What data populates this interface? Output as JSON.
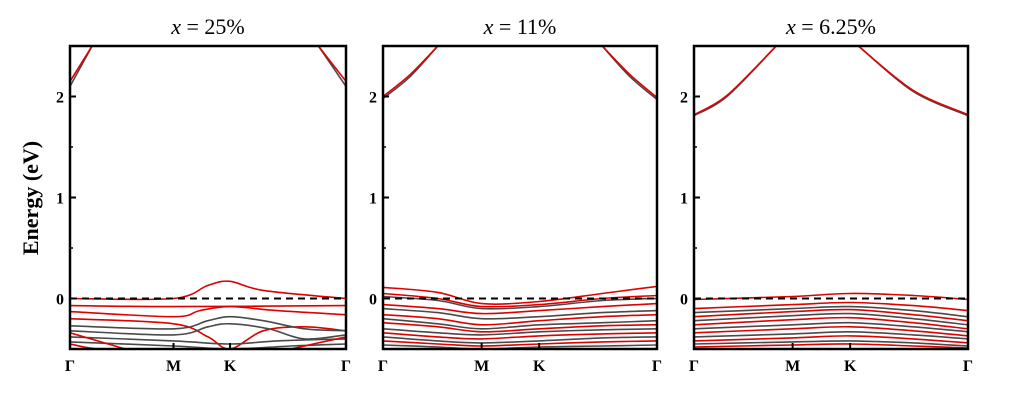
{
  "figure": {
    "ylabel": "Energy (eV)"
  },
  "chart_data": [
    {
      "type": "line",
      "title_var": "x",
      "title_rest": " = 25%",
      "ylim": [
        -0.5,
        2.5
      ],
      "yticks": [
        0,
        1,
        2
      ],
      "xlim": [
        0,
        1
      ],
      "kpoints": [
        {
          "label": "Γ",
          "x": 0.0
        },
        {
          "label": "M",
          "x": 0.375
        },
        {
          "label": "K",
          "x": 0.58
        },
        {
          "label": "Γ",
          "x": 1.0
        }
      ],
      "fermi_level": 0,
      "colors": {
        "dark": "#4a4a4a",
        "red": "#e00000"
      },
      "series": [
        {
          "color": "dark",
          "x": [
            0,
            0.08
          ],
          "y": [
            2.1,
            2.5
          ]
        },
        {
          "color": "red",
          "x": [
            0,
            0.08
          ],
          "y": [
            2.15,
            2.5
          ]
        },
        {
          "color": "dark",
          "x": [
            0.9,
            1.0
          ],
          "y": [
            2.5,
            2.1
          ]
        },
        {
          "color": "red",
          "x": [
            0.9,
            1.0
          ],
          "y": [
            2.5,
            2.15
          ]
        },
        {
          "color": "red",
          "x": [
            0,
            0.375,
            0.5,
            0.58,
            0.7,
            1.0
          ],
          "y": [
            0.0,
            0.0,
            0.13,
            0.17,
            0.08,
            0.0
          ]
        },
        {
          "color": "red",
          "x": [
            0,
            0.375,
            1.0
          ],
          "y": [
            -0.07,
            -0.08,
            -0.07
          ]
        },
        {
          "color": "red",
          "x": [
            0,
            0.375,
            0.47,
            0.58,
            0.75,
            1.0
          ],
          "y": [
            -0.13,
            -0.18,
            -0.12,
            -0.08,
            -0.12,
            -0.16
          ]
        },
        {
          "color": "red",
          "x": [
            0,
            0.375,
            0.5,
            0.58,
            0.7,
            0.85,
            1.0
          ],
          "y": [
            -0.2,
            -0.25,
            -0.38,
            -0.5,
            -0.32,
            -0.28,
            -0.32
          ]
        },
        {
          "color": "dark",
          "x": [
            0,
            0.375,
            0.5,
            0.58,
            0.7,
            0.85,
            1.0
          ],
          "y": [
            -0.27,
            -0.3,
            -0.22,
            -0.18,
            -0.22,
            -0.3,
            -0.32
          ]
        },
        {
          "color": "dark",
          "x": [
            0,
            0.375,
            0.5,
            0.58,
            0.72,
            0.85,
            1.0
          ],
          "y": [
            -0.32,
            -0.36,
            -0.28,
            -0.25,
            -0.3,
            -0.4,
            -0.36
          ]
        },
        {
          "color": "dark",
          "x": [
            0,
            0.375,
            0.58,
            0.75,
            1.0
          ],
          "y": [
            -0.38,
            -0.42,
            -0.45,
            -0.42,
            -0.4
          ]
        },
        {
          "color": "dark",
          "x": [
            0,
            0.375,
            0.58,
            0.8,
            1.0
          ],
          "y": [
            -0.43,
            -0.47,
            -0.5,
            -0.47,
            -0.45
          ]
        },
        {
          "color": "red",
          "x": [
            0,
            0.1,
            0.2
          ],
          "y": [
            -0.34,
            -0.42,
            -0.5
          ]
        },
        {
          "color": "red",
          "x": [
            0.8,
            0.9,
            1.0
          ],
          "y": [
            -0.5,
            -0.44,
            -0.38
          ]
        },
        {
          "color": "red",
          "x": [
            0,
            0.05,
            0.1
          ],
          "y": [
            -0.45,
            -0.48,
            -0.5
          ]
        }
      ]
    },
    {
      "type": "line",
      "title_var": "x",
      "title_rest": " = 11%",
      "ylim": [
        -0.5,
        2.5
      ],
      "yticks": [
        0,
        1,
        2
      ],
      "xlim": [
        0,
        1
      ],
      "kpoints": [
        {
          "label": "Γ",
          "x": 0.0
        },
        {
          "label": "M",
          "x": 0.36
        },
        {
          "label": "K",
          "x": 0.57
        },
        {
          "label": "Γ",
          "x": 1.0
        }
      ],
      "fermi_level": 0,
      "colors": {
        "dark": "#4a4a4a",
        "red": "#e00000"
      },
      "series": [
        {
          "color": "dark",
          "x": [
            0,
            0.1,
            0.2
          ],
          "y": [
            1.98,
            2.2,
            2.5
          ]
        },
        {
          "color": "red",
          "x": [
            0,
            0.1,
            0.2
          ],
          "y": [
            2.0,
            2.22,
            2.5
          ]
        },
        {
          "color": "dark",
          "x": [
            0.8,
            0.9,
            1.0
          ],
          "y": [
            2.5,
            2.2,
            1.97
          ]
        },
        {
          "color": "red",
          "x": [
            0.8,
            0.9,
            1.0
          ],
          "y": [
            2.5,
            2.22,
            1.99
          ]
        },
        {
          "color": "red",
          "x": [
            0,
            0.2,
            0.36,
            0.57,
            0.8,
            1.0
          ],
          "y": [
            0.11,
            0.06,
            -0.05,
            -0.03,
            0.05,
            0.12
          ]
        },
        {
          "color": "red",
          "x": [
            0,
            0.2,
            0.36,
            0.57,
            0.8,
            1.0
          ],
          "y": [
            0.05,
            0.0,
            -0.08,
            -0.06,
            0.0,
            0.03
          ]
        },
        {
          "color": "dark",
          "x": [
            0,
            0.2,
            0.36,
            0.57,
            0.8,
            1.0
          ],
          "y": [
            0.02,
            -0.02,
            -0.1,
            -0.08,
            -0.02,
            0.0
          ]
        },
        {
          "color": "red",
          "x": [
            0,
            0.2,
            0.36,
            0.57,
            0.8,
            1.0
          ],
          "y": [
            -0.06,
            -0.1,
            -0.15,
            -0.12,
            -0.08,
            -0.05
          ]
        },
        {
          "color": "dark",
          "x": [
            0,
            0.2,
            0.36,
            0.57,
            0.8,
            1.0
          ],
          "y": [
            -0.1,
            -0.14,
            -0.2,
            -0.18,
            -0.14,
            -0.12
          ]
        },
        {
          "color": "red",
          "x": [
            0,
            0.2,
            0.36,
            0.57,
            0.8,
            1.0
          ],
          "y": [
            -0.16,
            -0.2,
            -0.26,
            -0.22,
            -0.18,
            -0.16
          ]
        },
        {
          "color": "dark",
          "x": [
            0,
            0.2,
            0.36,
            0.57,
            0.8,
            1.0
          ],
          "y": [
            -0.2,
            -0.25,
            -0.3,
            -0.26,
            -0.24,
            -0.22
          ]
        },
        {
          "color": "red",
          "x": [
            0,
            0.2,
            0.36,
            0.57,
            0.8,
            1.0
          ],
          "y": [
            -0.24,
            -0.28,
            -0.33,
            -0.3,
            -0.27,
            -0.26
          ]
        },
        {
          "color": "dark",
          "x": [
            0,
            0.2,
            0.36,
            0.57,
            0.8,
            1.0
          ],
          "y": [
            -0.3,
            -0.34,
            -0.36,
            -0.33,
            -0.31,
            -0.3
          ]
        },
        {
          "color": "red",
          "x": [
            0,
            0.2,
            0.36,
            0.57,
            0.8,
            1.0
          ],
          "y": [
            -0.34,
            -0.38,
            -0.4,
            -0.37,
            -0.35,
            -0.34
          ]
        },
        {
          "color": "dark",
          "x": [
            0,
            0.2,
            0.36,
            0.57,
            0.8,
            1.0
          ],
          "y": [
            -0.38,
            -0.42,
            -0.44,
            -0.42,
            -0.39,
            -0.38
          ]
        },
        {
          "color": "red",
          "x": [
            0,
            0.2,
            0.36,
            0.57,
            0.8,
            1.0
          ],
          "y": [
            -0.42,
            -0.45,
            -0.47,
            -0.45,
            -0.43,
            -0.42
          ]
        },
        {
          "color": "dark",
          "x": [
            0,
            0.2,
            0.36,
            0.57,
            0.8,
            1.0
          ],
          "y": [
            -0.46,
            -0.48,
            -0.5,
            -0.48,
            -0.47,
            -0.46
          ]
        }
      ]
    },
    {
      "type": "line",
      "title_var": "x",
      "title_rest": " = 6.25%",
      "ylim": [
        -0.5,
        2.5
      ],
      "yticks": [
        0,
        1,
        2
      ],
      "xlim": [
        0,
        1
      ],
      "kpoints": [
        {
          "label": "Γ",
          "x": 0.0
        },
        {
          "label": "M",
          "x": 0.36
        },
        {
          "label": "K",
          "x": 0.57
        },
        {
          "label": "Γ",
          "x": 1.0
        }
      ],
      "fermi_level": 0,
      "colors": {
        "dark": "#4a4a4a",
        "red": "#e00000"
      },
      "series": [
        {
          "color": "dark",
          "x": [
            0,
            0.12,
            0.3
          ],
          "y": [
            1.81,
            2.0,
            2.5
          ]
        },
        {
          "color": "red",
          "x": [
            0,
            0.12,
            0.3
          ],
          "y": [
            1.82,
            2.01,
            2.5
          ]
        },
        {
          "color": "dark",
          "x": [
            0.6,
            0.8,
            1.0
          ],
          "y": [
            2.5,
            2.05,
            1.81
          ]
        },
        {
          "color": "red",
          "x": [
            0.6,
            0.8,
            1.0
          ],
          "y": [
            2.5,
            2.06,
            1.82
          ]
        },
        {
          "color": "red",
          "x": [
            0,
            0.36,
            0.57,
            0.8,
            1.0
          ],
          "y": [
            -0.01,
            0.02,
            0.05,
            0.03,
            -0.01
          ]
        },
        {
          "color": "red",
          "x": [
            0,
            0.36,
            0.57,
            0.8,
            1.0
          ],
          "y": [
            -0.1,
            -0.06,
            -0.04,
            -0.07,
            -0.12
          ]
        },
        {
          "color": "dark",
          "x": [
            0,
            0.36,
            0.57,
            0.8,
            1.0
          ],
          "y": [
            -0.14,
            -0.1,
            -0.08,
            -0.12,
            -0.18
          ]
        },
        {
          "color": "red",
          "x": [
            0,
            0.36,
            0.57,
            0.8,
            1.0
          ],
          "y": [
            -0.18,
            -0.13,
            -0.11,
            -0.16,
            -0.22
          ]
        },
        {
          "color": "dark",
          "x": [
            0,
            0.36,
            0.57,
            0.8,
            1.0
          ],
          "y": [
            -0.22,
            -0.17,
            -0.15,
            -0.2,
            -0.26
          ]
        },
        {
          "color": "red",
          "x": [
            0,
            0.36,
            0.57,
            0.8,
            1.0
          ],
          "y": [
            -0.26,
            -0.21,
            -0.19,
            -0.24,
            -0.3
          ]
        },
        {
          "color": "dark",
          "x": [
            0,
            0.36,
            0.57,
            0.8,
            1.0
          ],
          "y": [
            -0.3,
            -0.26,
            -0.24,
            -0.28,
            -0.33
          ]
        },
        {
          "color": "red",
          "x": [
            0,
            0.36,
            0.57,
            0.8,
            1.0
          ],
          "y": [
            -0.34,
            -0.3,
            -0.28,
            -0.32,
            -0.37
          ]
        },
        {
          "color": "dark",
          "x": [
            0,
            0.36,
            0.57,
            0.8,
            1.0
          ],
          "y": [
            -0.38,
            -0.35,
            -0.33,
            -0.36,
            -0.4
          ]
        },
        {
          "color": "red",
          "x": [
            0,
            0.36,
            0.57,
            0.8,
            1.0
          ],
          "y": [
            -0.42,
            -0.39,
            -0.37,
            -0.4,
            -0.44
          ]
        },
        {
          "color": "dark",
          "x": [
            0,
            0.36,
            0.57,
            0.8,
            1.0
          ],
          "y": [
            -0.45,
            -0.43,
            -0.42,
            -0.44,
            -0.47
          ]
        },
        {
          "color": "red",
          "x": [
            0,
            0.36,
            0.57,
            0.8,
            1.0
          ],
          "y": [
            -0.48,
            -0.46,
            -0.45,
            -0.47,
            -0.49
          ]
        }
      ]
    }
  ]
}
